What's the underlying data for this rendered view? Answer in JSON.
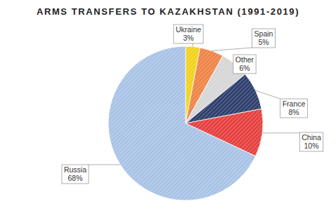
{
  "chart_data": {
    "type": "pie",
    "title": "ARMS TRANSFERS TO KAZAKHSTAN (1991-2019)",
    "categories": [
      "Ukraine",
      "Spain",
      "Other",
      "France",
      "China",
      "Russia"
    ],
    "values": [
      3,
      5,
      6,
      8,
      10,
      68
    ],
    "value_labels": [
      "3%",
      "5%",
      "6%",
      "8%",
      "10%",
      "68%"
    ],
    "colors": [
      "#f2d21b",
      "#ee8446",
      "#d6d6d6",
      "#2e3f6d",
      "#e5403f",
      "#a9c3e6"
    ],
    "data_labels": true
  }
}
